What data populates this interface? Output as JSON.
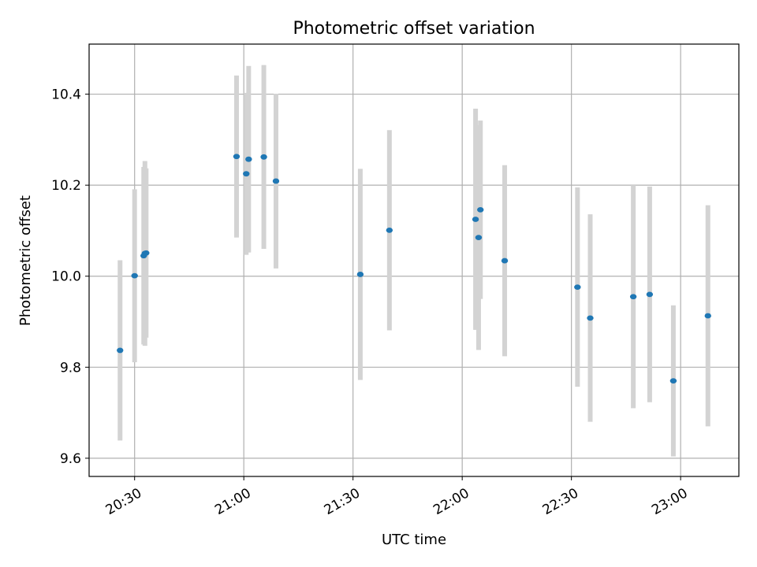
{
  "chart_data": {
    "type": "scatter",
    "title": "Photometric offset variation",
    "xlabel": "UTC time",
    "ylabel": "Photometric offset",
    "x_ticks": [
      "20:30",
      "21:00",
      "21:30",
      "22:00",
      "22:30",
      "23:00"
    ],
    "y_ticks": [
      "9.6",
      "9.8",
      "10.0",
      "10.2",
      "10.4"
    ],
    "xlim": [
      "20:17:30",
      "23:16:00"
    ],
    "ylim": [
      9.56,
      10.51
    ],
    "grid": true,
    "colors": {
      "points": "#1f77b4",
      "error_bars": "#d3d3d3",
      "grid": "#b0b0b0"
    },
    "points": [
      {
        "x": "20:26:00",
        "y": 9.837,
        "err": 0.198
      },
      {
        "x": "20:30:00",
        "y": 10.001,
        "err": 0.19
      },
      {
        "x": "20:32:30",
        "y": 10.045,
        "err": 0.195
      },
      {
        "x": "20:32:50",
        "y": 10.05,
        "err": 0.203
      },
      {
        "x": "20:33:10",
        "y": 10.051,
        "err": 0.186
      },
      {
        "x": "20:58:00",
        "y": 10.263,
        "err": 0.178
      },
      {
        "x": "21:00:40",
        "y": 10.225,
        "err": 0.178
      },
      {
        "x": "21:01:20",
        "y": 10.257,
        "err": 0.205
      },
      {
        "x": "21:05:30",
        "y": 10.262,
        "err": 0.202
      },
      {
        "x": "21:08:50",
        "y": 10.209,
        "err": 0.192
      },
      {
        "x": "21:32:00",
        "y": 10.004,
        "err": 0.232
      },
      {
        "x": "21:40:00",
        "y": 10.101,
        "err": 0.22
      },
      {
        "x": "22:03:40",
        "y": 10.125,
        "err": 0.243
      },
      {
        "x": "22:04:30",
        "y": 10.085,
        "err": 0.247
      },
      {
        "x": "22:05:00",
        "y": 10.146,
        "err": 0.196
      },
      {
        "x": "22:11:40",
        "y": 10.034,
        "err": 0.21
      },
      {
        "x": "22:31:40",
        "y": 9.976,
        "err": 0.219
      },
      {
        "x": "22:35:10",
        "y": 9.908,
        "err": 0.228
      },
      {
        "x": "22:47:00",
        "y": 9.955,
        "err": 0.245
      },
      {
        "x": "22:51:30",
        "y": 9.96,
        "err": 0.237
      },
      {
        "x": "22:58:00",
        "y": 9.77,
        "err": 0.166
      },
      {
        "x": "23:07:30",
        "y": 9.913,
        "err": 0.243
      }
    ]
  }
}
